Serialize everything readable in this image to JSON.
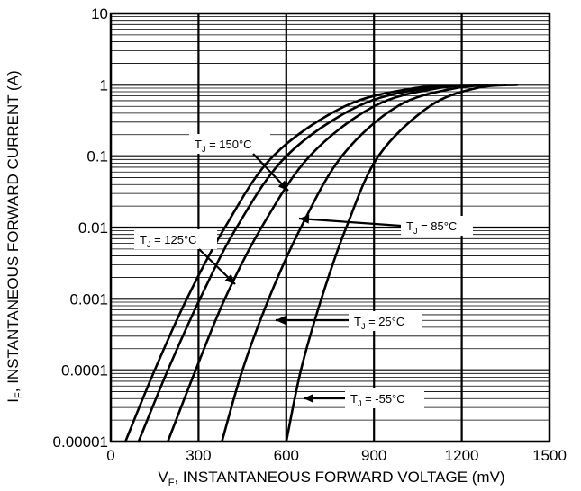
{
  "chart_data": {
    "type": "line",
    "y_scale": "log",
    "grid": true,
    "xlabel_main": "V",
    "xlabel_sub": "F",
    "xlabel_rest": ", INSTANTANEOUS FORWARD VOLTAGE (mV)",
    "ylabel_main": "I",
    "ylabel_sub": "F",
    "ylabel_rest": ", INSTANTANEOUS FORWARD CURRENT (A)",
    "xlim": [
      0,
      1500
    ],
    "ylim": [
      1e-05,
      10
    ],
    "x_ticks": [
      {
        "value": 0,
        "label": "0"
      },
      {
        "value": 300,
        "label": "300"
      },
      {
        "value": 600,
        "label": "600"
      },
      {
        "value": 900,
        "label": "900"
      },
      {
        "value": 1200,
        "label": "1200"
      },
      {
        "value": 1500,
        "label": "1500"
      }
    ],
    "y_ticks": [
      {
        "value": 10,
        "label": "10"
      },
      {
        "value": 1,
        "label": "1"
      },
      {
        "value": 0.1,
        "label": "0.1"
      },
      {
        "value": 0.01,
        "label": "0.01"
      },
      {
        "value": 0.001,
        "label": "0.001"
      },
      {
        "value": 0.0001,
        "label": "0.0001"
      },
      {
        "value": 1e-05,
        "label": "0.00001"
      }
    ],
    "series": [
      {
        "key": "tj150",
        "points": [
          [
            50,
            1e-05
          ],
          [
            150,
            0.0001
          ],
          [
            260,
            0.001
          ],
          [
            390,
            0.01
          ],
          [
            555,
            0.1
          ],
          [
            800,
            0.5
          ],
          [
            1040,
            0.9
          ],
          [
            1260,
            1.0
          ]
        ]
      },
      {
        "key": "tj125",
        "points": [
          [
            95,
            1e-05
          ],
          [
            195,
            0.0001
          ],
          [
            305,
            0.001
          ],
          [
            430,
            0.01
          ],
          [
            600,
            0.1
          ],
          [
            845,
            0.5
          ],
          [
            1080,
            0.9
          ],
          [
            1290,
            1.0
          ]
        ]
      },
      {
        "key": "tj85",
        "points": [
          [
            195,
            1e-05
          ],
          [
            290,
            0.0001
          ],
          [
            390,
            0.001
          ],
          [
            515,
            0.01
          ],
          [
            680,
            0.1
          ],
          [
            900,
            0.5
          ],
          [
            1120,
            0.9
          ],
          [
            1320,
            1.0
          ]
        ]
      },
      {
        "key": "tj25",
        "points": [
          [
            380,
            1e-05
          ],
          [
            450,
            0.0001
          ],
          [
            540,
            0.001
          ],
          [
            650,
            0.01
          ],
          [
            790,
            0.1
          ],
          [
            980,
            0.5
          ],
          [
            1180,
            0.9
          ],
          [
            1350,
            1.0
          ]
        ]
      },
      {
        "key": "tjm55",
        "points": [
          [
            600,
            1e-05
          ],
          [
            650,
            0.0001
          ],
          [
            720,
            0.001
          ],
          [
            805,
            0.01
          ],
          [
            915,
            0.1
          ],
          [
            1090,
            0.5
          ],
          [
            1250,
            0.9
          ],
          [
            1390,
            1.0
          ]
        ]
      }
    ],
    "annotations": [
      {
        "key": "a150",
        "label_main": "T",
        "label_sub": "J",
        "label_rest": " = 150°C"
      },
      {
        "key": "a125",
        "label_main": "T",
        "label_sub": "J",
        "label_rest": " = 125°C"
      },
      {
        "key": "a85",
        "label_main": "T",
        "label_sub": "J",
        "label_rest": " = 85°C"
      },
      {
        "key": "a25",
        "label_main": "T",
        "label_sub": "J",
        "label_rest": " = 25°C"
      },
      {
        "key": "am55",
        "label_main": "T",
        "label_sub": "J",
        "label_rest": " = -55°C"
      }
    ]
  }
}
